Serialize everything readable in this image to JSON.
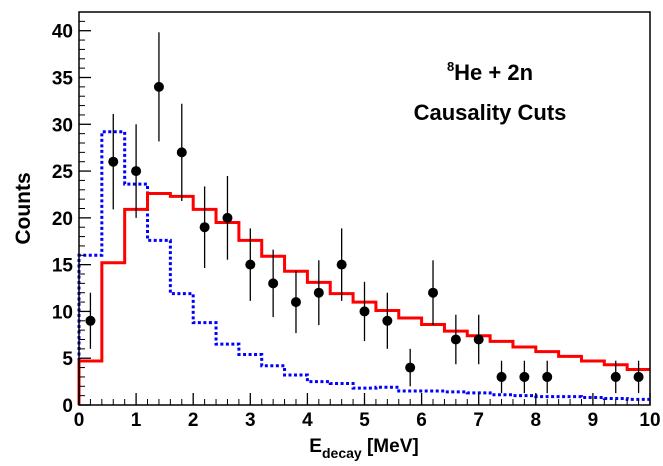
{
  "chart_data": {
    "type": "histogram",
    "annotation": {
      "isotope_mass": "8",
      "line1_rest": "He + 2n",
      "line2": "Causality Cuts"
    },
    "xlabel": {
      "main": "E",
      "sub": "decay",
      "unit": " [MeV]"
    },
    "ylabel": "Counts",
    "xlim": [
      0,
      10
    ],
    "ylim": [
      0,
      42
    ],
    "x_major_ticks": [
      0,
      1,
      2,
      3,
      4,
      5,
      6,
      7,
      8,
      9,
      10
    ],
    "y_major_ticks": [
      0,
      5,
      10,
      15,
      20,
      25,
      30,
      35,
      40
    ],
    "x_tick_labels": [
      "0",
      "1",
      "2",
      "3",
      "4",
      "5",
      "6",
      "7",
      "8",
      "9",
      "10"
    ],
    "y_tick_labels": [
      "0",
      "5",
      "10",
      "15",
      "20",
      "25",
      "30",
      "35",
      "40"
    ],
    "bin_width": 0.4,
    "series": [
      {
        "style": "points-with-errors",
        "color": "#000000",
        "x": [
          0.2,
          0.6,
          1.0,
          1.4,
          1.8,
          2.2,
          2.6,
          3.0,
          3.4,
          3.8,
          4.2,
          4.6,
          5.0,
          5.4,
          5.8,
          6.2,
          6.6,
          7.0,
          7.4,
          7.8,
          8.2,
          9.4,
          9.8
        ],
        "y": [
          9,
          26,
          25,
          34,
          27,
          19,
          20,
          15,
          13,
          11,
          12,
          15,
          10,
          9,
          4,
          12,
          7,
          7,
          3,
          3,
          3,
          3,
          3
        ]
      },
      {
        "style": "histogram-solid",
        "color": "#ff0000",
        "bin_edges": [
          0.0,
          0.4,
          0.8,
          1.2,
          1.6,
          2.0,
          2.4,
          2.8,
          3.2,
          3.6,
          4.0,
          4.4,
          4.8,
          5.2,
          5.6,
          6.0,
          6.4,
          6.8,
          7.2,
          7.6,
          8.0,
          8.4,
          8.8,
          9.2,
          9.6,
          10.0
        ],
        "values": [
          4.7,
          15.2,
          20.9,
          22.6,
          22.3,
          20.9,
          19.5,
          17.6,
          15.9,
          14.3,
          13.1,
          11.9,
          11.0,
          10.1,
          9.3,
          8.6,
          7.9,
          7.4,
          6.8,
          6.2,
          5.7,
          5.2,
          4.7,
          4.3,
          3.8
        ]
      },
      {
        "style": "histogram-dotted",
        "color": "#0000ff",
        "bin_edges": [
          0.0,
          0.4,
          0.8,
          1.2,
          1.6,
          2.0,
          2.4,
          2.8,
          3.2,
          3.6,
          4.0,
          4.4,
          4.8,
          5.2,
          5.6,
          6.0,
          6.4,
          6.8,
          7.2,
          7.6,
          8.0,
          8.4,
          8.8,
          9.2,
          9.6,
          10.0
        ],
        "values": [
          16.0,
          29.2,
          23.6,
          17.6,
          11.9,
          8.8,
          6.5,
          5.4,
          4.2,
          3.2,
          2.5,
          2.3,
          1.8,
          1.9,
          1.5,
          1.5,
          1.4,
          1.3,
          1.1,
          1.0,
          0.9,
          0.9,
          0.8,
          0.7,
          0.6
        ]
      }
    ]
  }
}
